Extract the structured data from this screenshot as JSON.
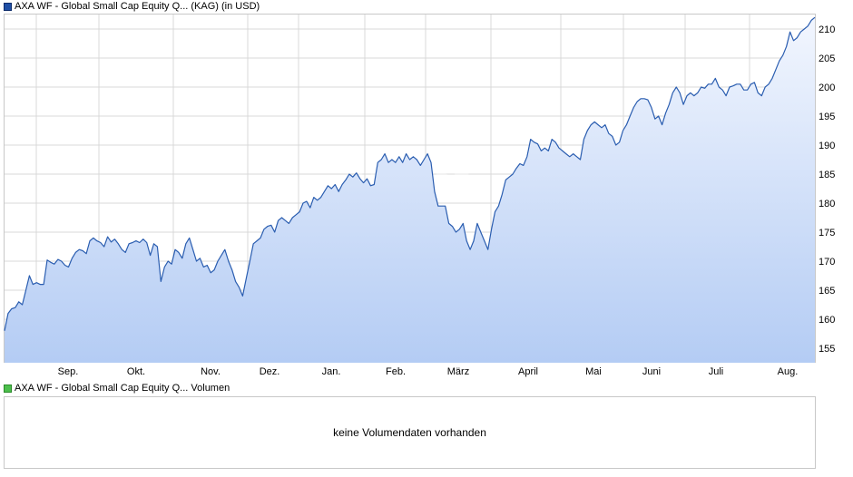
{
  "legend": {
    "main": "AXA WF - Global Small Cap Equity Q... (KAG) (in USD)",
    "volume": "AXA WF - Global Small Cap Equity Q... Volumen"
  },
  "volume": {
    "message": "keine Volumendaten vorhanden"
  },
  "watermark": "ARIVA.DE",
  "colors": {
    "line": "#2a5db0",
    "fill_top": "#f2f6fe",
    "fill_bottom": "#b4ccf4",
    "grid": "#d9d9d9"
  },
  "chart_data": {
    "type": "area",
    "x_axis_months": [
      "Sep.",
      "Okt.",
      "Nov.",
      "Dez.",
      "Jan.",
      "Feb.",
      "März",
      "April",
      "Mai",
      "Juni",
      "Juli",
      "Aug."
    ],
    "ylim": [
      152.5,
      212.5
    ],
    "yticks": [
      155,
      160,
      165,
      170,
      175,
      180,
      185,
      190,
      195,
      200,
      205,
      210
    ],
    "grid": true,
    "series": [
      {
        "values": [
          158.0,
          161.0,
          161.8,
          162.0,
          163.0,
          162.5,
          165.0,
          167.5,
          166.0,
          166.3,
          166.0,
          166.0,
          170.2,
          169.8,
          169.5,
          170.3,
          170.0,
          169.3,
          169.0,
          170.5,
          171.5,
          172.0,
          171.8,
          171.3,
          173.5,
          174.0,
          173.5,
          173.2,
          172.5,
          174.2,
          173.3,
          173.8,
          173.0,
          172.0,
          171.5,
          173.0,
          173.2,
          173.5,
          173.2,
          173.8,
          173.2,
          171.0,
          173.0,
          172.5,
          166.5,
          169.0,
          170.0,
          169.5,
          172.0,
          171.5,
          170.5,
          173.0,
          174.0,
          172.0,
          170.0,
          170.5,
          169.0,
          169.3,
          168.0,
          168.5,
          170.0,
          171.0,
          172.0,
          170.0,
          168.5,
          166.5,
          165.5,
          164.0,
          167.0,
          170.0,
          173.0,
          173.5,
          174.0,
          175.5,
          176.0,
          176.2,
          175.0,
          177.0,
          177.5,
          177.0,
          176.5,
          177.5,
          178.0,
          178.5,
          180.0,
          180.3,
          179.2,
          181.0,
          180.5,
          181.0,
          182.0,
          183.0,
          182.5,
          183.2,
          182.0,
          183.2,
          184.0,
          185.0,
          184.5,
          185.2,
          184.2,
          183.5,
          184.2,
          183.0,
          183.2,
          187.0,
          187.5,
          188.5,
          187.0,
          187.5,
          187.0,
          188.0,
          187.0,
          188.5,
          187.5,
          188.0,
          187.5,
          186.5,
          187.5,
          188.5,
          187.0,
          182.0,
          179.5,
          179.5,
          179.5,
          176.5,
          176.0,
          175.0,
          175.5,
          176.5,
          173.5,
          172.0,
          173.5,
          176.5,
          175.0,
          173.5,
          172.0,
          175.5,
          178.5,
          179.5,
          181.5,
          184.0,
          184.5,
          185.0,
          186.0,
          186.8,
          186.5,
          188.0,
          191.0,
          190.5,
          190.2,
          189.0,
          189.5,
          189.0,
          191.0,
          190.5,
          189.5,
          189.0,
          188.5,
          188.0,
          188.5,
          188.0,
          187.5,
          191.0,
          192.5,
          193.5,
          194.0,
          193.5,
          193.0,
          193.5,
          192.0,
          191.5,
          190.0,
          190.5,
          192.5,
          193.5,
          195.0,
          196.5,
          197.5,
          198.0,
          198.0,
          197.8,
          196.5,
          194.5,
          195.0,
          193.5,
          195.5,
          197.0,
          199.0,
          200.0,
          199.0,
          197.0,
          198.5,
          199.0,
          198.5,
          199.0,
          200.0,
          199.8,
          200.5,
          200.5,
          201.5,
          200.0,
          199.5,
          198.5,
          200.0,
          200.2,
          200.5,
          200.5,
          199.5,
          199.5,
          200.5,
          200.8,
          199.0,
          198.5,
          200.0,
          200.5,
          201.5,
          203.0,
          204.5,
          205.5,
          207.0,
          209.5,
          208.0,
          208.5,
          209.5,
          210.0,
          210.5,
          211.5,
          212.0
        ]
      }
    ]
  }
}
